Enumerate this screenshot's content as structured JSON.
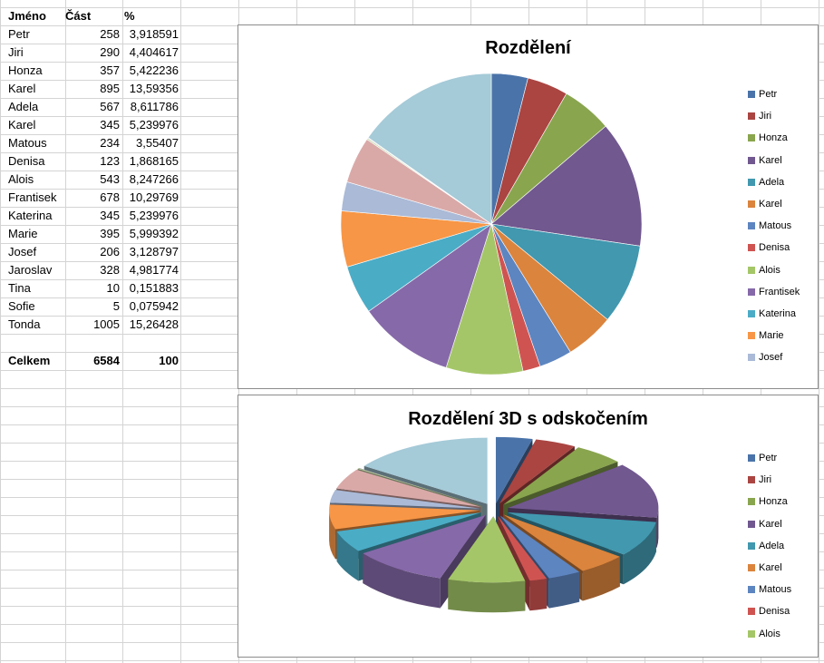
{
  "table": {
    "headers": [
      "Jméno",
      "Část",
      "%"
    ],
    "rows": [
      [
        "Petr",
        "258",
        "3,918591"
      ],
      [
        "Jiri",
        "290",
        "4,404617"
      ],
      [
        "Honza",
        "357",
        "5,422236"
      ],
      [
        "Karel",
        "895",
        "13,59356"
      ],
      [
        "Adela",
        "567",
        "8,611786"
      ],
      [
        "Karel",
        "345",
        "5,239976"
      ],
      [
        "Matous",
        "234",
        "3,55407"
      ],
      [
        "Denisa",
        "123",
        "1,868165"
      ],
      [
        "Alois",
        "543",
        "8,247266"
      ],
      [
        "Frantisek",
        "678",
        "10,29769"
      ],
      [
        "Katerina",
        "345",
        "5,239976"
      ],
      [
        "Marie",
        "395",
        "5,999392"
      ],
      [
        "Josef",
        "206",
        "3,128797"
      ],
      [
        "Jaroslav",
        "328",
        "4,981774"
      ],
      [
        "Tina",
        "10",
        "0,151883"
      ],
      [
        "Sofie",
        "5",
        "0,075942"
      ],
      [
        "Tonda",
        "1005",
        "15,26428"
      ]
    ],
    "total": [
      "Celkem",
      "6584",
      "100"
    ]
  },
  "chart_data": [
    {
      "type": "pie",
      "title": "Rozdělení",
      "categories": [
        "Petr",
        "Jiri",
        "Honza",
        "Karel",
        "Adela",
        "Karel",
        "Matous",
        "Denisa",
        "Alois",
        "Frantisek",
        "Katerina",
        "Marie",
        "Josef",
        "Jaroslav",
        "Tina",
        "Sofie",
        "Tonda"
      ],
      "values": [
        258,
        290,
        357,
        895,
        567,
        345,
        234,
        123,
        543,
        678,
        345,
        395,
        206,
        328,
        10,
        5,
        1005
      ],
      "legend_visible": [
        "Petr",
        "Jiri",
        "Honza",
        "Karel",
        "Adela",
        "Karel",
        "Matous",
        "Denisa",
        "Alois",
        "Frantisek",
        "Katerina",
        "Marie",
        "Josef"
      ],
      "legend_position": "right"
    },
    {
      "type": "pie",
      "subtype": "3d-exploded",
      "title": "Rozdělení 3D s odskočením",
      "categories": [
        "Petr",
        "Jiri",
        "Honza",
        "Karel",
        "Adela",
        "Karel",
        "Matous",
        "Denisa",
        "Alois",
        "Frantisek",
        "Katerina",
        "Marie",
        "Josef",
        "Jaroslav",
        "Tina",
        "Sofie",
        "Tonda"
      ],
      "values": [
        258,
        290,
        357,
        895,
        567,
        345,
        234,
        123,
        543,
        678,
        345,
        395,
        206,
        328,
        10,
        5,
        1005
      ],
      "legend_visible": [
        "Petr",
        "Jiri",
        "Honza",
        "Karel",
        "Adela",
        "Karel",
        "Matous",
        "Denisa",
        "Alois"
      ],
      "legend_position": "right"
    }
  ],
  "colors": [
    "#4a73a9",
    "#aa4542",
    "#89a54e",
    "#71588f",
    "#4198af",
    "#db843d",
    "#5d85c0",
    "#cf5451",
    "#a5c668",
    "#8669a9",
    "#4bacc6",
    "#f79646",
    "#aabad7",
    "#d9a9a8",
    "#c5d6a8",
    "#b9b1cb",
    "#a5cad8"
  ]
}
